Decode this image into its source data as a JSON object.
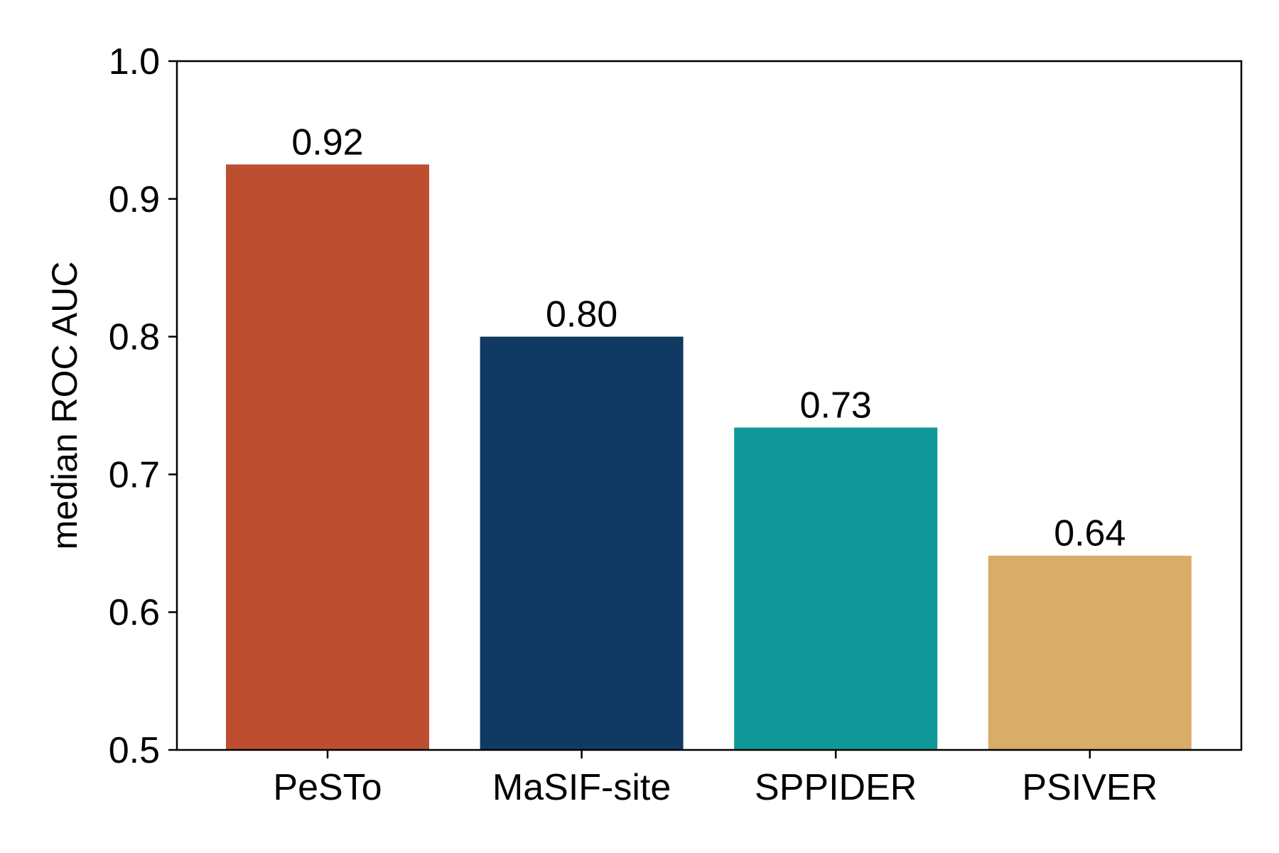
{
  "chart_data": {
    "type": "bar",
    "categories": [
      "PeSTo",
      "MaSIF-site",
      "SPPIDER",
      "PSIVER"
    ],
    "values": [
      0.925,
      0.8,
      0.734,
      0.641
    ],
    "data_labels": [
      "0.92",
      "0.80",
      "0.73",
      "0.64"
    ],
    "colors": [
      "#bd4f30",
      "#103a63",
      "#109797",
      "#d9ac6a"
    ],
    "title": "",
    "xlabel": "",
    "ylabel": "median ROC AUC",
    "ylim": [
      0.5,
      1.0
    ],
    "yticks": [
      0.5,
      0.6,
      0.7,
      0.8,
      0.9,
      1.0
    ],
    "ytick_labels": [
      "0.5",
      "0.6",
      "0.7",
      "0.8",
      "0.9",
      "1.0"
    ],
    "grid": false,
    "legend": "none"
  }
}
